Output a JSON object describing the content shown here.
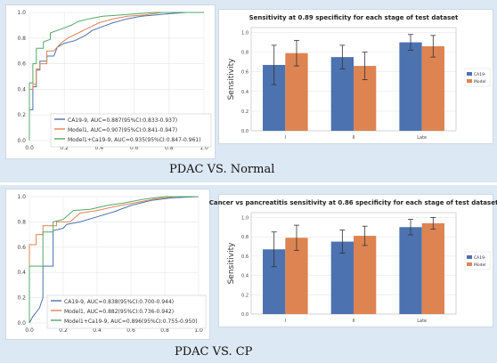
{
  "captions": [
    "PDAC VS. Normal",
    "PDAC VS. CP"
  ],
  "colors": {
    "ca199": "#4c72b0",
    "model1": "#dd8452",
    "combo": "#55a868",
    "band": "#dce9f4"
  },
  "chart_data": [
    {
      "type": "line",
      "x_ticks": [
        "0.0",
        "0.2",
        "0.4",
        "0.6",
        "0.8",
        "1.0"
      ],
      "y_ticks": [
        "0.0",
        "0.2",
        "0.4",
        "0.6",
        "0.8",
        "1.0"
      ],
      "xlim": [
        0,
        1
      ],
      "ylim": [
        0,
        1
      ],
      "legend_position": "bottom-right",
      "series": [
        {
          "name": "CA19-9, AUC=0.887(95%CI:0.833-0.937)",
          "color": "#4c72b0",
          "points": [
            [
              0,
              0
            ],
            [
              0,
              0.24
            ],
            [
              0.02,
              0.24
            ],
            [
              0.02,
              0.42
            ],
            [
              0.04,
              0.42
            ],
            [
              0.04,
              0.55
            ],
            [
              0.06,
              0.55
            ],
            [
              0.06,
              0.62
            ],
            [
              0.1,
              0.62
            ],
            [
              0.1,
              0.66
            ],
            [
              0.14,
              0.66
            ],
            [
              0.16,
              0.73
            ],
            [
              0.2,
              0.76
            ],
            [
              0.26,
              0.78
            ],
            [
              0.32,
              0.82
            ],
            [
              0.36,
              0.86
            ],
            [
              0.42,
              0.89
            ],
            [
              0.48,
              0.92
            ],
            [
              0.56,
              0.95
            ],
            [
              0.64,
              0.97
            ],
            [
              0.72,
              0.98
            ],
            [
              0.8,
              0.99
            ],
            [
              0.9,
              1
            ],
            [
              1,
              1
            ]
          ]
        },
        {
          "name": "Model1, AUC=0.907(95%CI:0.841-0.947)",
          "color": "#dd8452",
          "points": [
            [
              0,
              0
            ],
            [
              0,
              0.4
            ],
            [
              0.02,
              0.4
            ],
            [
              0.02,
              0.44
            ],
            [
              0.04,
              0.44
            ],
            [
              0.04,
              0.56
            ],
            [
              0.06,
              0.56
            ],
            [
              0.06,
              0.6
            ],
            [
              0.1,
              0.6
            ],
            [
              0.1,
              0.7
            ],
            [
              0.14,
              0.7
            ],
            [
              0.18,
              0.76
            ],
            [
              0.22,
              0.8
            ],
            [
              0.28,
              0.84
            ],
            [
              0.34,
              0.88
            ],
            [
              0.4,
              0.92
            ],
            [
              0.48,
              0.95
            ],
            [
              0.56,
              0.97
            ],
            [
              0.66,
              0.98
            ],
            [
              0.76,
              1
            ],
            [
              1,
              1
            ]
          ]
        },
        {
          "name": "Model1+Ca19-9, AUC=0.935(95%CI:0.847-0.961)",
          "color": "#55a868",
          "points": [
            [
              0,
              0
            ],
            [
              0,
              0.45
            ],
            [
              0.02,
              0.45
            ],
            [
              0.02,
              0.6
            ],
            [
              0.04,
              0.6
            ],
            [
              0.04,
              0.72
            ],
            [
              0.08,
              0.72
            ],
            [
              0.08,
              0.77
            ],
            [
              0.12,
              0.79
            ],
            [
              0.12,
              0.84
            ],
            [
              0.16,
              0.86
            ],
            [
              0.2,
              0.88
            ],
            [
              0.24,
              0.9
            ],
            [
              0.28,
              0.93
            ],
            [
              0.34,
              0.95
            ],
            [
              0.42,
              0.97
            ],
            [
              0.52,
              0.98
            ],
            [
              0.62,
              0.99
            ],
            [
              0.72,
              1
            ],
            [
              1,
              1
            ]
          ]
        }
      ]
    },
    {
      "type": "bar",
      "title": "Sensitivity at 0.89 specificity for each stage of test dataset",
      "ylabel": "Sensitivity",
      "categories": [
        "I",
        "II",
        "Late"
      ],
      "y_ticks": [
        "0.0",
        "0.2",
        "0.4",
        "0.6",
        "0.8",
        "1.0"
      ],
      "ylim": [
        0,
        1.05
      ],
      "legend_position": "right",
      "series": [
        {
          "name": "CA19-",
          "color": "#4c72b0",
          "values": [
            0.67,
            0.75,
            0.9
          ],
          "err": [
            0.2,
            0.12,
            0.08
          ]
        },
        {
          "name": "Model",
          "color": "#dd8452",
          "values": [
            0.79,
            0.66,
            0.86
          ],
          "err": [
            0.13,
            0.14,
            0.11
          ]
        }
      ]
    },
    {
      "type": "line",
      "x_ticks": [
        "0.0",
        "0.2",
        "0.4",
        "0.6",
        "0.8",
        "1.0"
      ],
      "y_ticks": [
        "0.0",
        "0.2",
        "0.4",
        "0.6",
        "0.8",
        "1.0"
      ],
      "xlim": [
        0,
        1
      ],
      "ylim": [
        0,
        1
      ],
      "legend_position": "bottom-right",
      "series": [
        {
          "name": "CA19-9, AUC=0.838(95%CI:0.700-0.944)",
          "color": "#4c72b0",
          "points": [
            [
              0,
              0
            ],
            [
              0.02,
              0.05
            ],
            [
              0.06,
              0.12
            ],
            [
              0.08,
              0.2
            ],
            [
              0.08,
              0.45
            ],
            [
              0.14,
              0.45
            ],
            [
              0.14,
              0.73
            ],
            [
              0.2,
              0.75
            ],
            [
              0.22,
              0.78
            ],
            [
              0.3,
              0.8
            ],
            [
              0.4,
              0.84
            ],
            [
              0.5,
              0.88
            ],
            [
              0.6,
              0.93
            ],
            [
              0.72,
              0.97
            ],
            [
              0.84,
              0.99
            ],
            [
              1,
              1
            ]
          ]
        },
        {
          "name": "Model1, AUC=0.882(95%CI:0.736-0.942)",
          "color": "#dd8452",
          "points": [
            [
              0,
              0
            ],
            [
              0,
              0.62
            ],
            [
              0.04,
              0.62
            ],
            [
              0.04,
              0.7
            ],
            [
              0.08,
              0.7
            ],
            [
              0.08,
              0.77
            ],
            [
              0.16,
              0.77
            ],
            [
              0.16,
              0.8
            ],
            [
              0.24,
              0.8
            ],
            [
              0.3,
              0.87
            ],
            [
              0.4,
              0.89
            ],
            [
              0.5,
              0.92
            ],
            [
              0.62,
              0.95
            ],
            [
              0.74,
              0.98
            ],
            [
              0.86,
              1
            ],
            [
              1,
              1
            ]
          ]
        },
        {
          "name": "Model1+Ca19-9, AUC=0.896(95%CI:0.755-0.950)",
          "color": "#55a868",
          "points": [
            [
              0,
              0
            ],
            [
              0,
              0.45
            ],
            [
              0.08,
              0.45
            ],
            [
              0.08,
              0.72
            ],
            [
              0.14,
              0.72
            ],
            [
              0.14,
              0.8
            ],
            [
              0.2,
              0.82
            ],
            [
              0.26,
              0.89
            ],
            [
              0.36,
              0.9
            ],
            [
              0.46,
              0.93
            ],
            [
              0.56,
              0.95
            ],
            [
              0.68,
              0.98
            ],
            [
              0.8,
              1
            ],
            [
              1,
              1
            ]
          ]
        }
      ]
    },
    {
      "type": "bar",
      "title": "Cancer vs pancreatitis sensitivity at 0.86 specificity for each stage of test dataset",
      "ylabel": "Sensitivity",
      "categories": [
        "I",
        "II",
        "Late"
      ],
      "y_ticks": [
        "0.0",
        "0.2",
        "0.4",
        "0.6",
        "0.8",
        "1.0"
      ],
      "ylim": [
        0,
        1.05
      ],
      "legend_position": "right",
      "series": [
        {
          "name": "CA19-",
          "color": "#4c72b0",
          "values": [
            0.67,
            0.75,
            0.9
          ],
          "err": [
            0.18,
            0.12,
            0.08
          ]
        },
        {
          "name": "Model",
          "color": "#dd8452",
          "values": [
            0.79,
            0.81,
            0.94
          ],
          "err": [
            0.13,
            0.1,
            0.06
          ]
        }
      ]
    }
  ]
}
